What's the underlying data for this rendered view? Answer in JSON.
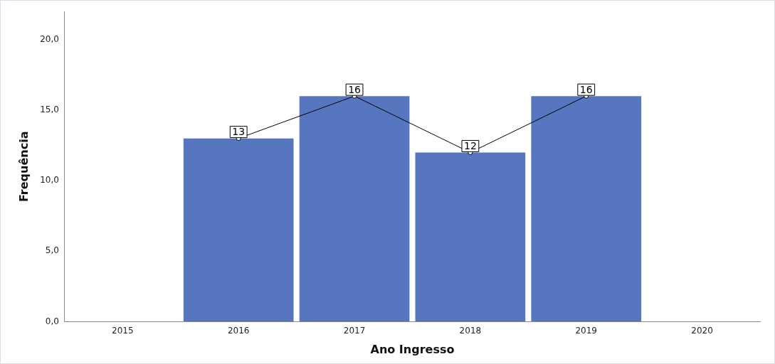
{
  "chart_data": {
    "type": "bar",
    "xlabel": "Ano Ingresso",
    "ylabel": "Frequência",
    "categories": [
      "2015",
      "2016",
      "2017",
      "2018",
      "2019",
      "2020"
    ],
    "series": [
      {
        "color": "#5677bf",
        "values": [
          null,
          13,
          16,
          12,
          16,
          null
        ]
      },
      {
        "type": "line",
        "color": "#000000",
        "values": [
          null,
          13,
          16,
          12,
          16,
          null
        ],
        "marker": "circle",
        "value_labels": [
          null,
          "13",
          "16",
          "12",
          "16",
          null
        ]
      }
    ],
    "ylim": [
      0,
      22
    ],
    "yticks": [
      {
        "value": 0,
        "label": "0,0"
      },
      {
        "value": 5,
        "label": "5,0"
      },
      {
        "value": 10,
        "label": "10,0"
      },
      {
        "value": 15,
        "label": "15,0"
      },
      {
        "value": 20,
        "label": "20,0"
      }
    ],
    "grid": false,
    "legend": false
  }
}
